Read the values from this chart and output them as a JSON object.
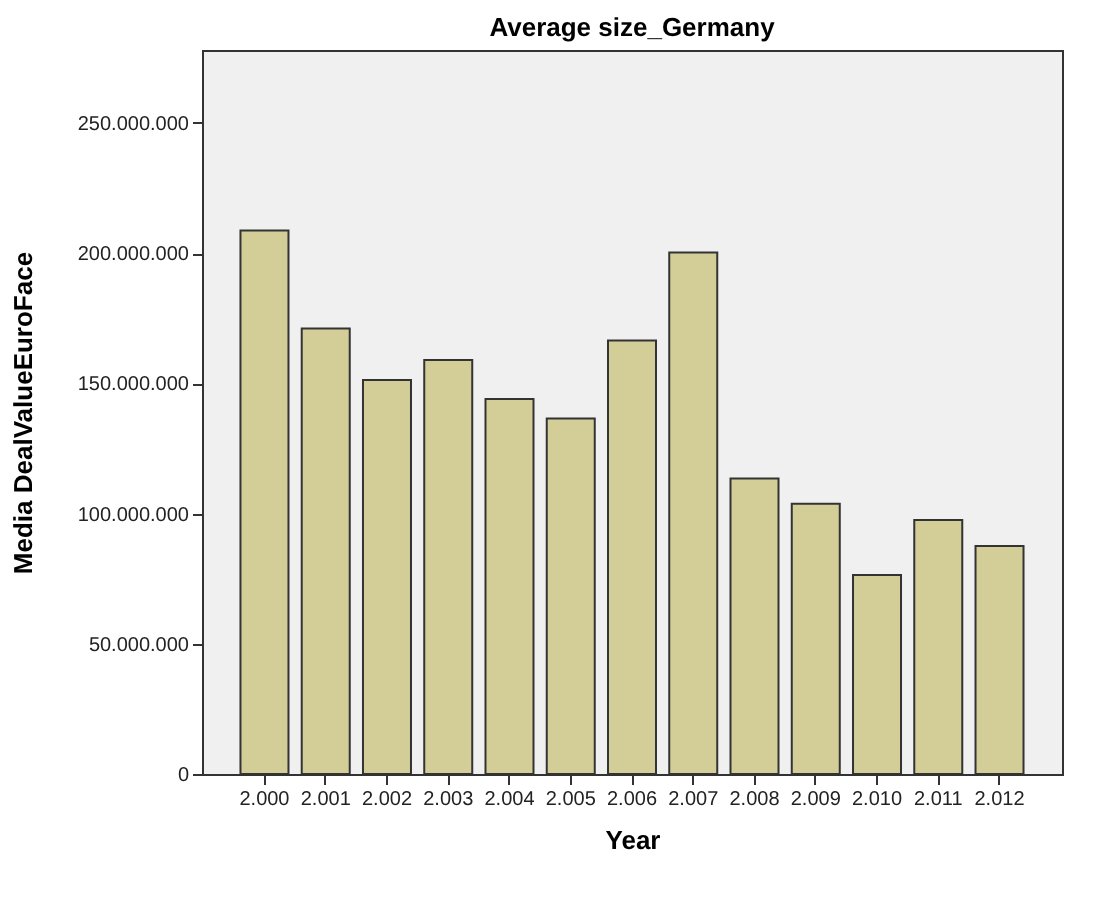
{
  "chart_data": {
    "type": "bar",
    "title": "Average size_Germany",
    "xlabel": "Year",
    "ylabel": "Media DealValueEuroFace",
    "categories": [
      "2.000",
      "2.001",
      "2.002",
      "2.003",
      "2.004",
      "2.005",
      "2.006",
      "2.007",
      "2.008",
      "2.009",
      "2.010",
      "2.011",
      "2.012"
    ],
    "values": [
      208700000,
      171100000,
      151300000,
      159000000,
      144000000,
      136500000,
      166500000,
      200200000,
      113500000,
      103800000,
      76400000,
      97500000,
      87500000
    ],
    "color": "#d3ce98",
    "ylim": [
      0,
      278000000
    ],
    "yticks": [
      {
        "value": 0,
        "label": "0"
      },
      {
        "value": 50000000,
        "label": "50.000.000"
      },
      {
        "value": 100000000,
        "label": "100.000.000"
      },
      {
        "value": 150000000,
        "label": "150.000.000"
      },
      {
        "value": 200000000,
        "label": "200.000.000"
      },
      {
        "value": 250000000,
        "label": "250.000.000"
      }
    ],
    "grid": false
  }
}
